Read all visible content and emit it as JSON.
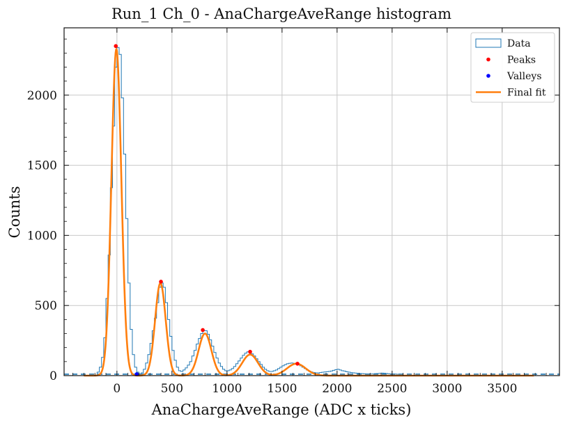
{
  "chart_data": {
    "type": "line",
    "title": "Run_1 Ch_0 - AnaChargeAveRange histogram",
    "xlabel": "AnaChargeAveRange (ADC x ticks)",
    "ylabel": "Counts",
    "xlim": [
      -480,
      4020
    ],
    "ylim": [
      0,
      2480
    ],
    "xticks": [
      0,
      500,
      1000,
      1500,
      2000,
      2500,
      3000,
      3500
    ],
    "xtick_labels": [
      "0",
      "500",
      "1000",
      "1500",
      "2000",
      "2500",
      "3000",
      "3500"
    ],
    "yticks": [
      0,
      500,
      1000,
      1500,
      2000
    ],
    "ytick_labels": [
      "0",
      "500",
      "1000",
      "1500",
      "2000"
    ],
    "grid": true,
    "legend_position": "top-right",
    "legend": [
      {
        "label": "Data",
        "kind": "histogram-step",
        "color": "#1f77b4"
      },
      {
        "label": "Peaks",
        "kind": "marker",
        "color": "#ff0000"
      },
      {
        "label": "Valleys",
        "kind": "marker",
        "color": "#0000ff"
      },
      {
        "label": "Final fit",
        "kind": "line",
        "color": "#ff7f0e"
      }
    ],
    "baseline": {
      "y": 10,
      "style": "dashed",
      "color": "#1f77b4"
    },
    "series": [
      {
        "name": "Data",
        "kind": "histogram-step",
        "color": "#1f77b4",
        "bin_width": 20,
        "bins": [
          [
            -200,
            5
          ],
          [
            -180,
            25
          ],
          [
            -160,
            60
          ],
          [
            -140,
            130
          ],
          [
            -120,
            270
          ],
          [
            -100,
            550
          ],
          [
            -80,
            860
          ],
          [
            -60,
            1340
          ],
          [
            -40,
            1780
          ],
          [
            -20,
            2200
          ],
          [
            0,
            2340
          ],
          [
            20,
            2290
          ],
          [
            40,
            1980
          ],
          [
            60,
            1580
          ],
          [
            80,
            1120
          ],
          [
            100,
            660
          ],
          [
            120,
            330
          ],
          [
            140,
            150
          ],
          [
            160,
            60
          ],
          [
            180,
            25
          ],
          [
            200,
            12
          ],
          [
            220,
            20
          ],
          [
            240,
            45
          ],
          [
            260,
            90
          ],
          [
            280,
            150
          ],
          [
            300,
            230
          ],
          [
            320,
            320
          ],
          [
            340,
            410
          ],
          [
            360,
            520
          ],
          [
            380,
            630
          ],
          [
            400,
            660
          ],
          [
            420,
            630
          ],
          [
            440,
            520
          ],
          [
            460,
            400
          ],
          [
            480,
            280
          ],
          [
            500,
            180
          ],
          [
            520,
            110
          ],
          [
            540,
            60
          ],
          [
            560,
            35
          ],
          [
            580,
            30
          ],
          [
            600,
            40
          ],
          [
            620,
            55
          ],
          [
            640,
            75
          ],
          [
            660,
            100
          ],
          [
            680,
            140
          ],
          [
            700,
            180
          ],
          [
            720,
            225
          ],
          [
            740,
            265
          ],
          [
            760,
            300
          ],
          [
            780,
            320
          ],
          [
            800,
            320
          ],
          [
            820,
            295
          ],
          [
            840,
            255
          ],
          [
            860,
            210
          ],
          [
            880,
            165
          ],
          [
            900,
            125
          ],
          [
            920,
            90
          ],
          [
            940,
            65
          ],
          [
            960,
            45
          ],
          [
            980,
            35
          ],
          [
            1000,
            35
          ],
          [
            1020,
            40
          ],
          [
            1040,
            50
          ],
          [
            1060,
            65
          ],
          [
            1080,
            85
          ],
          [
            1100,
            105
          ],
          [
            1120,
            125
          ],
          [
            1140,
            145
          ],
          [
            1160,
            160
          ],
          [
            1180,
            170
          ],
          [
            1200,
            165
          ],
          [
            1220,
            155
          ],
          [
            1240,
            140
          ],
          [
            1260,
            120
          ],
          [
            1280,
            100
          ],
          [
            1300,
            80
          ],
          [
            1320,
            60
          ],
          [
            1340,
            45
          ],
          [
            1360,
            35
          ],
          [
            1380,
            30
          ],
          [
            1400,
            30
          ],
          [
            1420,
            35
          ],
          [
            1440,
            40
          ],
          [
            1460,
            50
          ],
          [
            1480,
            60
          ],
          [
            1500,
            70
          ],
          [
            1520,
            78
          ],
          [
            1540,
            85
          ],
          [
            1560,
            88
          ],
          [
            1580,
            90
          ],
          [
            1600,
            88
          ],
          [
            1620,
            85
          ],
          [
            1640,
            78
          ],
          [
            1660,
            70
          ],
          [
            1680,
            60
          ],
          [
            1700,
            50
          ],
          [
            1720,
            40
          ],
          [
            1740,
            32
          ],
          [
            1760,
            26
          ],
          [
            1780,
            22
          ],
          [
            1800,
            20
          ],
          [
            1820,
            20
          ],
          [
            1840,
            22
          ],
          [
            1860,
            24
          ],
          [
            1880,
            26
          ],
          [
            1900,
            28
          ],
          [
            1920,
            30
          ],
          [
            1940,
            33
          ],
          [
            1960,
            38
          ],
          [
            1980,
            42
          ],
          [
            2000,
            45
          ],
          [
            2020,
            40
          ],
          [
            2040,
            35
          ],
          [
            2060,
            32
          ],
          [
            2080,
            28
          ],
          [
            2100,
            25
          ],
          [
            2120,
            22
          ],
          [
            2140,
            20
          ],
          [
            2160,
            18
          ],
          [
            2180,
            16
          ],
          [
            2200,
            15
          ],
          [
            2220,
            14
          ],
          [
            2240,
            13
          ],
          [
            2260,
            12
          ],
          [
            2280,
            12
          ],
          [
            2300,
            12
          ],
          [
            2320,
            12
          ],
          [
            2340,
            14
          ],
          [
            2360,
            15
          ],
          [
            2380,
            16
          ],
          [
            2400,
            18
          ],
          [
            2420,
            17
          ],
          [
            2440,
            15
          ],
          [
            2460,
            13
          ],
          [
            2480,
            12
          ],
          [
            2500,
            11
          ],
          [
            2520,
            11
          ],
          [
            2540,
            10
          ],
          [
            2560,
            10
          ],
          [
            2580,
            10
          ]
        ]
      },
      {
        "name": "Peaks",
        "kind": "marker",
        "color": "#ff0000",
        "points": [
          [
            -10,
            2350
          ],
          [
            400,
            670
          ],
          [
            780,
            325
          ],
          [
            1210,
            170
          ],
          [
            1640,
            85
          ]
        ]
      },
      {
        "name": "Valleys",
        "kind": "marker",
        "color": "#0000ff",
        "points": [
          [
            180,
            10
          ]
        ]
      },
      {
        "name": "Final fit",
        "kind": "line",
        "color": "#ff7f0e",
        "x_range": [
          -300,
          3790
        ],
        "model": "sum_of_gaussians",
        "components": [
          {
            "amplitude": 2330,
            "mean": -5,
            "sigma": 45
          },
          {
            "amplitude": 660,
            "mean": 395,
            "sigma": 48
          },
          {
            "amplitude": 300,
            "mean": 800,
            "sigma": 58
          },
          {
            "amplitude": 150,
            "mean": 1210,
            "sigma": 72
          },
          {
            "amplitude": 85,
            "mean": 1630,
            "sigma": 85
          }
        ],
        "offset": 8
      }
    ]
  }
}
